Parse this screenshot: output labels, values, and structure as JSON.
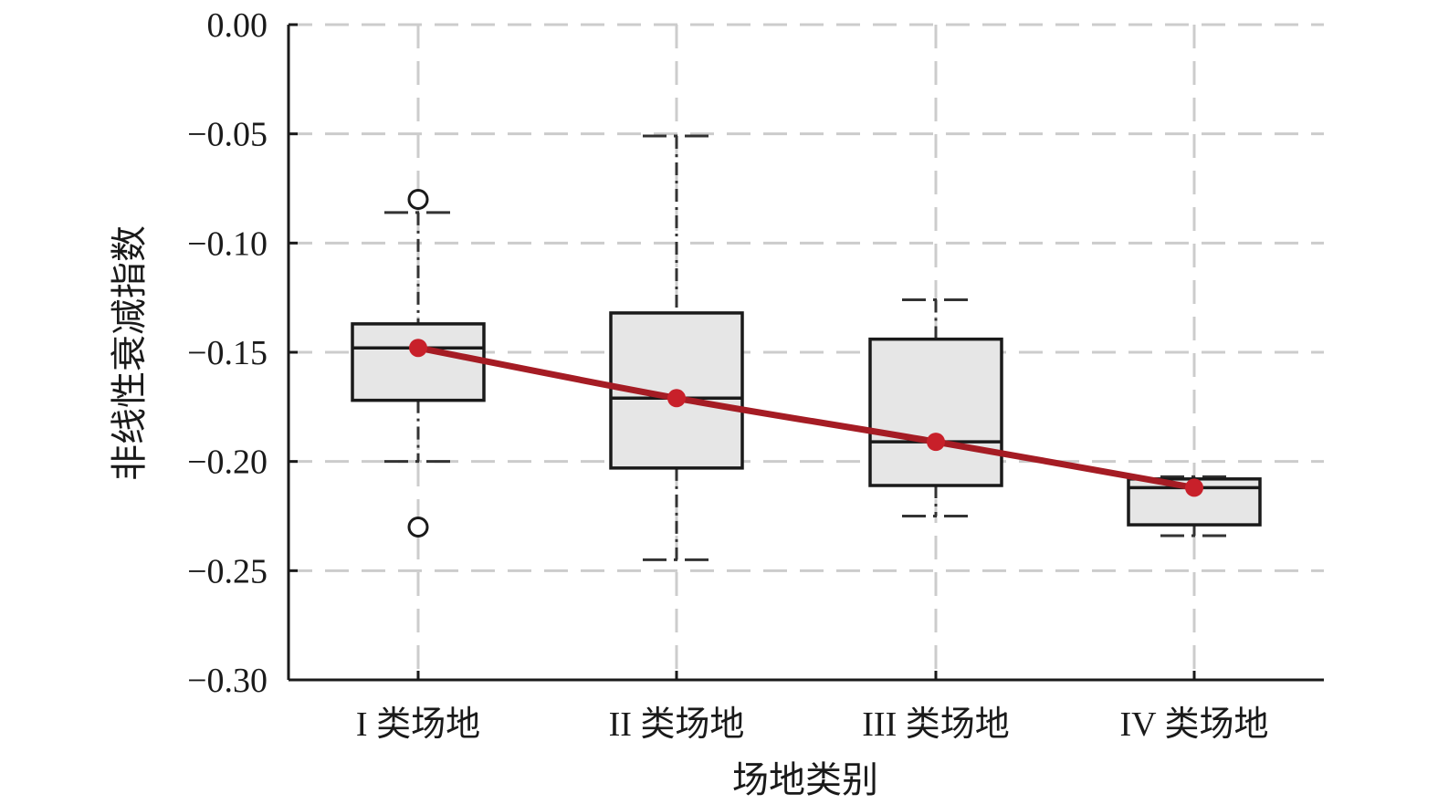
{
  "chart_data": {
    "type": "box",
    "title": "",
    "xlabel": "场地类别",
    "ylabel": "非线性衰减指数",
    "ylim": [
      -0.3,
      0.0
    ],
    "yticks": [
      0.0,
      -0.05,
      -0.1,
      -0.15,
      -0.2,
      -0.25,
      -0.3
    ],
    "ytick_labels": [
      "0.00",
      "−0.05",
      "−0.10",
      "−0.15",
      "−0.20",
      "−0.25",
      "−0.30"
    ],
    "grid": true,
    "categories": [
      "I 类场地",
      "II 类场地",
      "III 类场地",
      "IV 类场地"
    ],
    "boxes": [
      {
        "whisker_high": -0.086,
        "q3": -0.137,
        "median": -0.148,
        "q1": -0.172,
        "whisker_low": -0.2,
        "mean": -0.148,
        "outliers": [
          -0.08,
          -0.23
        ]
      },
      {
        "whisker_high": -0.051,
        "q3": -0.132,
        "median": -0.171,
        "q1": -0.203,
        "whisker_low": -0.245,
        "mean": -0.171,
        "outliers": []
      },
      {
        "whisker_high": -0.126,
        "q3": -0.144,
        "median": -0.191,
        "q1": -0.211,
        "whisker_low": -0.225,
        "mean": -0.191,
        "outliers": []
      },
      {
        "whisker_high": -0.207,
        "q3": -0.208,
        "median": -0.212,
        "q1": -0.229,
        "whisker_low": -0.234,
        "mean": -0.212,
        "outliers": []
      }
    ],
    "colors": {
      "box_fill": "#e6e6e6",
      "box_edge": "#1a1a1a",
      "grid": "#cccccc",
      "mean_line": "#a51c24",
      "mean_marker": "#c8202a"
    }
  }
}
